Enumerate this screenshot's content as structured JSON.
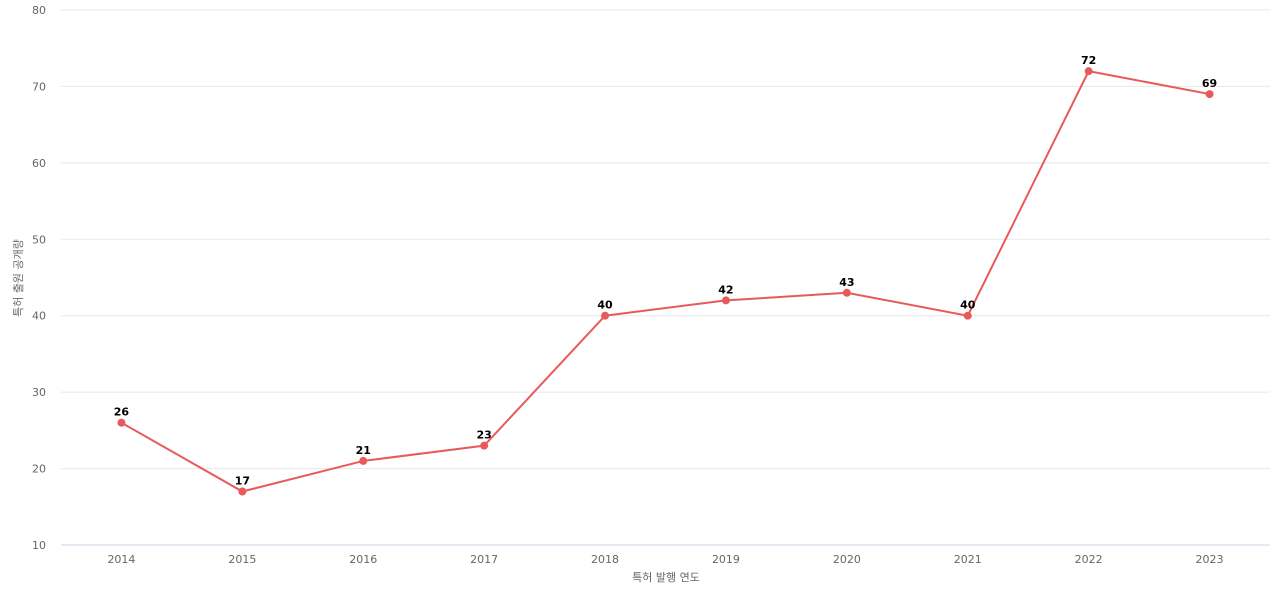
{
  "chart_data": {
    "type": "line",
    "x_label": "특허 발행 연도",
    "y_label": "특허 출원 공개량",
    "categories": [
      "2014",
      "2015",
      "2016",
      "2017",
      "2018",
      "2019",
      "2020",
      "2021",
      "2022",
      "2023"
    ],
    "series": [
      {
        "name": "특허 출원 공개량",
        "color": "#e85a5a",
        "values": [
          26,
          17,
          21,
          23,
          40,
          42,
          43,
          40,
          72,
          69
        ]
      }
    ],
    "ylim": [
      10,
      80
    ],
    "yticks": [
      10,
      20,
      30,
      40,
      50,
      60,
      70,
      80
    ],
    "grid": true,
    "data_labels": true
  }
}
